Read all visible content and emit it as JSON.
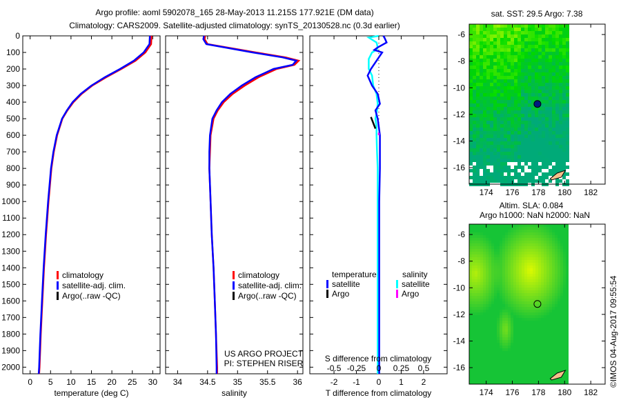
{
  "header": {
    "title_line1": "Argo profile: aoml 5902078_165 28-May-2013 11.215S 177.921E (DM data)",
    "title_line2": "Climatology: CARS2009. Satellite-adjusted climatology: synTS_20130528.nc (0.3d earlier)"
  },
  "credits": {
    "line1": "US ARGO PROJECT",
    "line2": "PI: STEPHEN RISER"
  },
  "copyright": "©IMOS 04-Aug-2017 09:55:54",
  "colors": {
    "climatology": "#ff0000",
    "satellite": "#0000ff",
    "argo": "#000000",
    "sal_satellite": "#00ffff",
    "sal_argo": "#ff00ff"
  },
  "chart_data": [
    {
      "type": "line",
      "name": "temperature-profile",
      "xlabel": "temperature (deg C)",
      "xlim": [
        -1.8,
        31.8
      ],
      "ylim": [
        0,
        2040
      ],
      "xticks": [
        0,
        5,
        10,
        15,
        20,
        25,
        30
      ],
      "yticks": [
        0,
        100,
        200,
        300,
        400,
        500,
        600,
        700,
        800,
        900,
        1000,
        1100,
        1200,
        1300,
        1400,
        1500,
        1600,
        1700,
        1800,
        1900,
        2000
      ],
      "legend": [
        "climatology",
        "satellite-adj. clim.",
        "Argo(..raw -QC)"
      ],
      "depth": [
        0,
        50,
        100,
        150,
        200,
        250,
        300,
        350,
        400,
        450,
        500,
        600,
        700,
        800,
        1000,
        1200,
        1400,
        1600,
        1800,
        2000,
        2040
      ],
      "series": [
        {
          "name": "climatology",
          "values": [
            29.7,
            29.6,
            28.2,
            25.8,
            22.3,
            18.6,
            15.2,
            12.6,
            10.6,
            9.1,
            7.9,
            6.6,
            5.8,
            5.2,
            4.5,
            3.9,
            3.4,
            3.0,
            2.6,
            2.3,
            2.2
          ]
        },
        {
          "name": "satellite-adj. clim.",
          "values": [
            29.3,
            29.2,
            27.8,
            25.4,
            22.0,
            18.3,
            15.0,
            12.4,
            10.4,
            9.0,
            7.8,
            6.5,
            5.7,
            5.1,
            4.4,
            3.8,
            3.3,
            2.9,
            2.5,
            2.2,
            2.1
          ]
        }
      ]
    },
    {
      "type": "line",
      "name": "salinity-profile",
      "xlabel": "salinity",
      "xlim": [
        33.8,
        36.09
      ],
      "ylim": [
        0,
        2040
      ],
      "xticks": [
        34,
        34.5,
        35,
        35.5,
        36
      ],
      "legend": [
        "climatology",
        "satellite-adj. clim.",
        "Argo(..raw -QC)"
      ],
      "depth": [
        0,
        20,
        50,
        100,
        130,
        150,
        175,
        200,
        250,
        300,
        350,
        400,
        450,
        500,
        600,
        700,
        800,
        1000,
        1200,
        1400,
        1600,
        1800,
        2000,
        2040
      ],
      "series": [
        {
          "name": "climatology",
          "values": [
            34.46,
            34.45,
            34.5,
            35.3,
            35.8,
            36.02,
            35.95,
            35.65,
            35.35,
            35.12,
            34.92,
            34.77,
            34.67,
            34.6,
            34.55,
            34.54,
            34.53,
            34.55,
            34.57,
            34.6,
            34.62,
            34.64,
            34.66,
            34.66
          ]
        },
        {
          "name": "satellite-adj. clim.",
          "values": [
            34.44,
            34.43,
            34.48,
            35.25,
            35.75,
            35.98,
            35.92,
            35.6,
            35.3,
            35.07,
            34.88,
            34.74,
            34.65,
            34.58,
            34.54,
            34.53,
            34.53,
            34.55,
            34.57,
            34.6,
            34.62,
            34.64,
            34.65,
            34.65
          ]
        }
      ]
    },
    {
      "type": "line",
      "name": "difference-profile",
      "xlabel": "T difference from climatology",
      "xlim": [
        -3.08,
        3.05
      ],
      "ylim": [
        0,
        2040
      ],
      "xticks": [
        -2,
        -1,
        0,
        1,
        2
      ],
      "top_label": "S difference from climatology",
      "top_ticks": [
        -0.5,
        -0.25,
        0,
        0.25,
        0.5
      ],
      "legend_temperature": {
        "title": "temperature",
        "items": [
          "satellite",
          "Argo"
        ]
      },
      "legend_salinity": {
        "title": "salinity",
        "items": [
          "satellite",
          "Argo"
        ]
      },
      "depth": [
        0,
        10,
        40,
        70,
        85,
        100,
        140,
        200,
        240,
        300,
        350,
        410,
        450,
        500,
        550,
        600,
        700,
        800,
        1000,
        1500,
        2000,
        2040
      ],
      "series": [
        {
          "name": "temperature satellite",
          "values": [
            0.2,
            0.25,
            0.35,
            -0.05,
            -0.2,
            0.15,
            -0.05,
            -0.35,
            -0.5,
            -0.3,
            -0.05,
            0.05,
            -0.15,
            -0.05,
            0,
            0.05,
            0.05,
            0.05,
            0.02,
            0.02,
            0.02,
            0.02
          ]
        },
        {
          "name": "salinity satellite",
          "values": [
            0.0,
            -0.45,
            -0.1,
            -0.05,
            -0.1,
            -0.3,
            -0.45,
            -0.45,
            -0.3,
            -0.25,
            -0.1,
            -0.05,
            -0.08,
            -0.15,
            -0.1,
            -0.1,
            -0.08,
            -0.05,
            -0.05,
            -0.05,
            -0.05,
            -0.05
          ]
        },
        {
          "name": "Argo temperature",
          "depth": [
            490,
            560
          ],
          "values": [
            -0.35,
            -0.15
          ]
        },
        {
          "name": "Argo salinity",
          "depth": [
            585,
            600
          ],
          "values": [
            0.0,
            0.0
          ]
        }
      ]
    }
  ],
  "maps": [
    {
      "title": "sat. SST: 29.5 Argo: 7.38",
      "kind": "sst"
    },
    {
      "title": "Altim. SLA: 0.084",
      "subtitle": "Argo h1000: NaN h2000: NaN",
      "kind": "sla"
    }
  ],
  "map_axes": {
    "lon_ticks": [
      174,
      176,
      178,
      180,
      182
    ],
    "lat_ticks": [
      -6,
      -8,
      -10,
      -12,
      -14,
      -16
    ],
    "lon_range": [
      172.7,
      183.1
    ],
    "lat_range": [
      -17.24,
      -5.22
    ]
  },
  "argo_position": {
    "lon": 177.921,
    "lat": -11.215
  }
}
